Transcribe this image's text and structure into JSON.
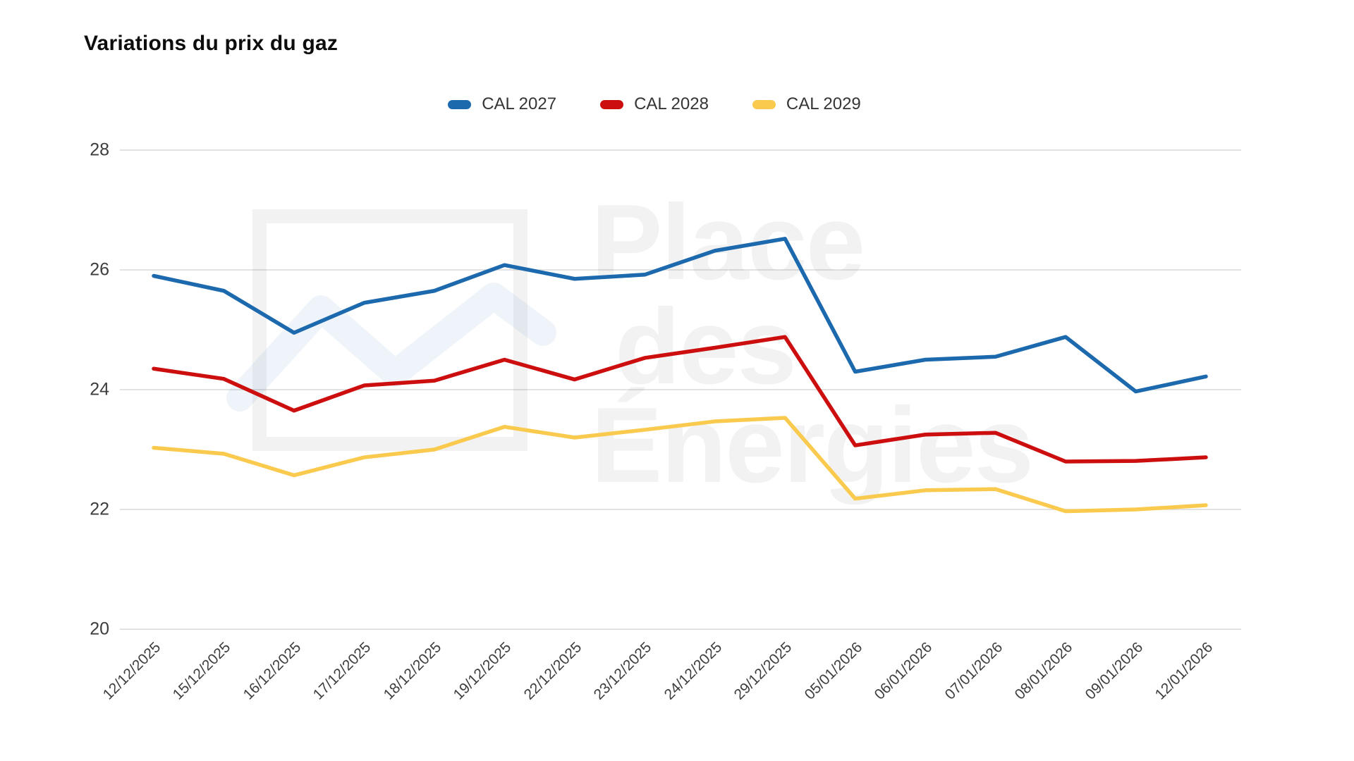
{
  "chart_data": {
    "type": "line",
    "title": "Variations du prix du gaz",
    "xlabel": "",
    "ylabel": "",
    "ylim": [
      20,
      28
    ],
    "yticks": [
      20,
      22,
      24,
      26,
      28
    ],
    "grid": true,
    "legend_position": "top-center",
    "categories": [
      "12/12/2025",
      "15/12/2025",
      "16/12/2025",
      "17/12/2025",
      "18/12/2025",
      "19/12/2025",
      "22/12/2025",
      "23/12/2025",
      "24/12/2025",
      "29/12/2025",
      "05/01/2026",
      "06/01/2026",
      "07/01/2026",
      "08/01/2026",
      "09/01/2026",
      "12/01/2026"
    ],
    "series": [
      {
        "name": "CAL 2027",
        "color": "#1c69ad",
        "values": [
          25.9,
          25.65,
          24.95,
          25.45,
          25.65,
          26.08,
          25.85,
          25.92,
          26.32,
          26.52,
          24.3,
          24.5,
          24.55,
          24.88,
          23.97,
          24.22
        ]
      },
      {
        "name": "CAL 2028",
        "color": "#cc0e0e",
        "values": [
          24.35,
          24.18,
          23.65,
          24.07,
          24.15,
          24.5,
          24.17,
          24.53,
          24.7,
          24.88,
          23.07,
          23.25,
          23.28,
          22.8,
          22.81,
          22.87
        ]
      },
      {
        "name": "CAL 2029",
        "color": "#f9ca4e",
        "values": [
          23.03,
          22.93,
          22.57,
          22.87,
          23.0,
          23.38,
          23.2,
          23.33,
          23.47,
          23.53,
          22.18,
          22.32,
          22.34,
          21.97,
          22.0,
          22.07
        ]
      }
    ]
  },
  "watermark": {
    "line1": "Place",
    "line2": "des",
    "line3": "Énergies"
  }
}
